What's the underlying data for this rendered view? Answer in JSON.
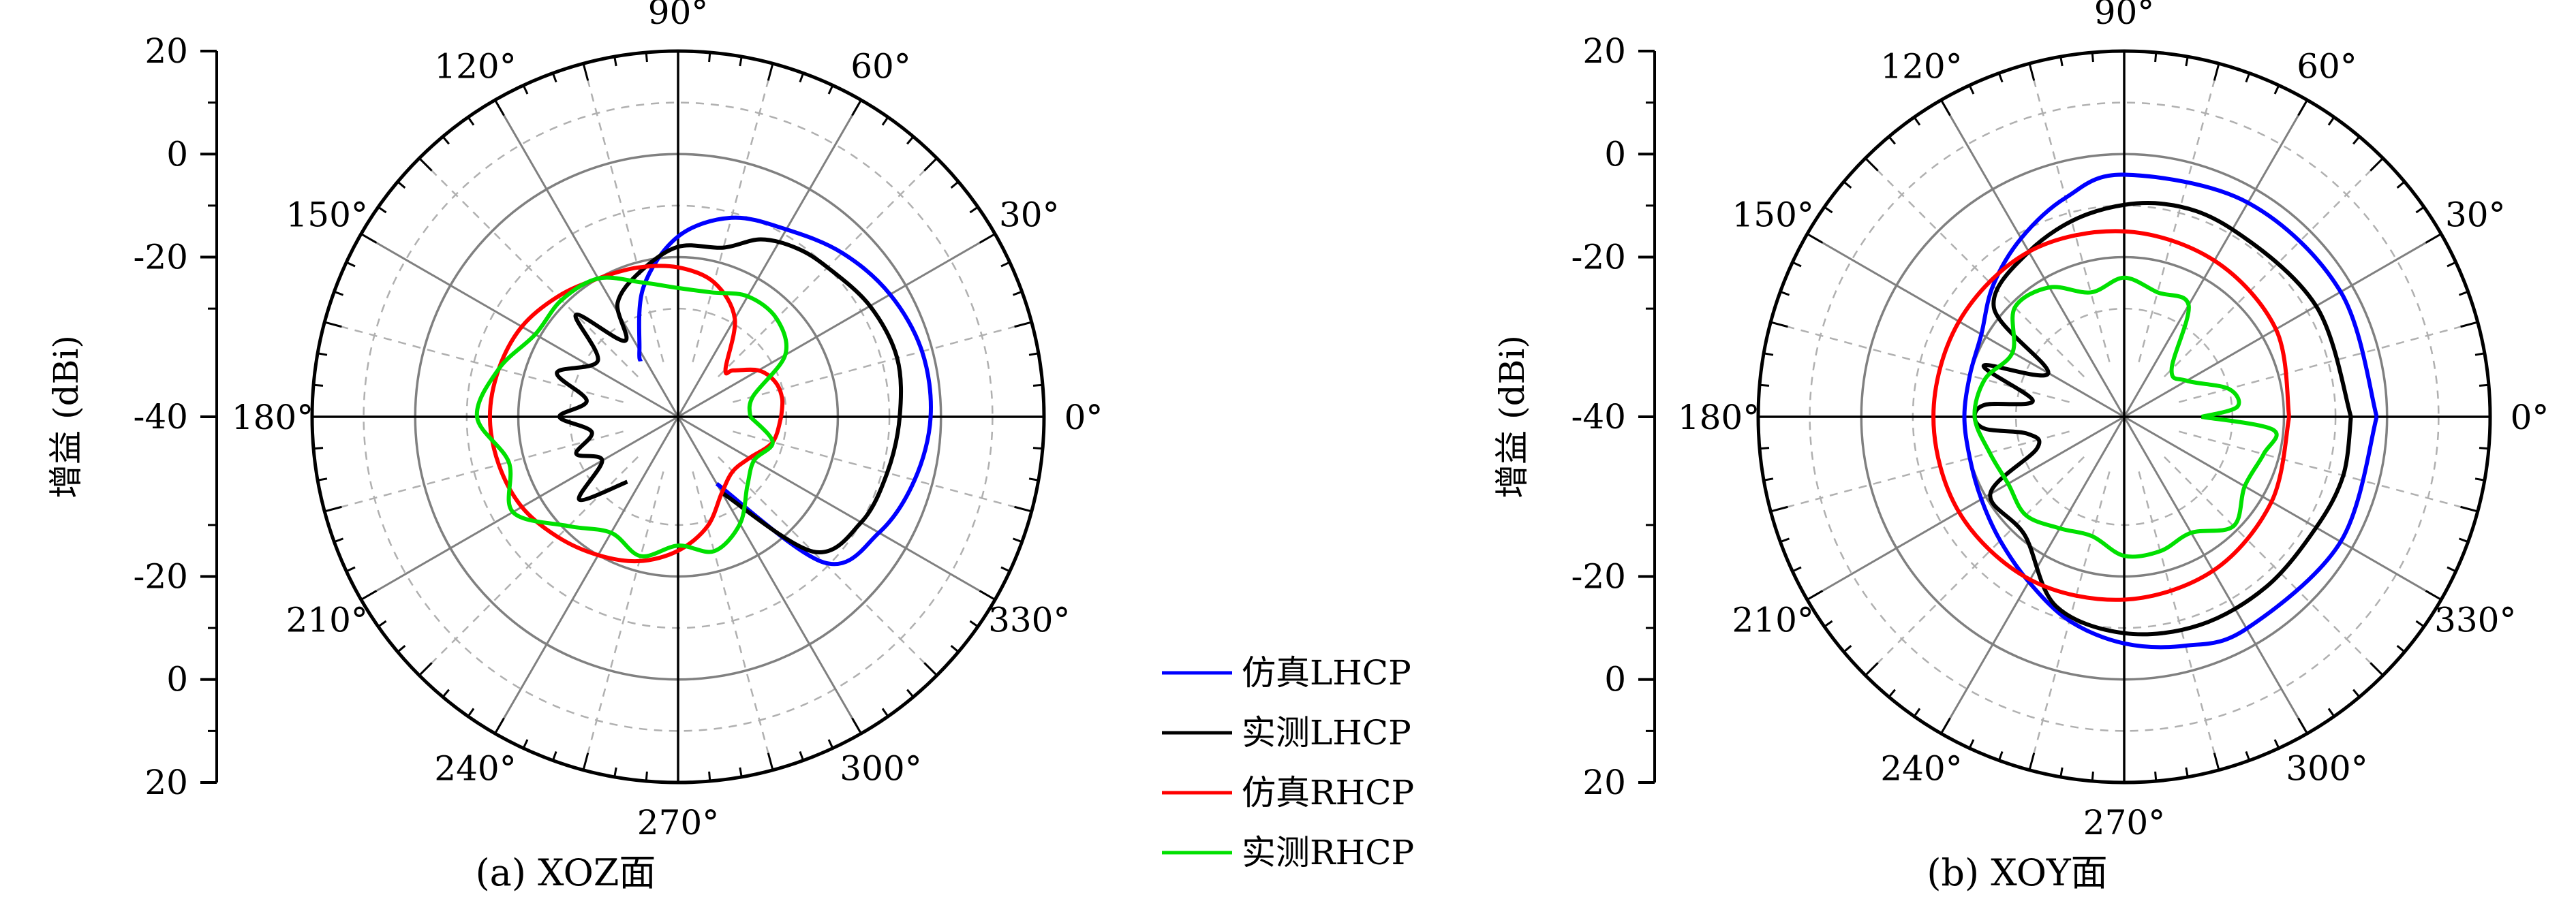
{
  "chart_data": [
    {
      "type": "polar",
      "caption": "(a) XOZ面",
      "ylabel": "增益 (dBi)",
      "radial_ticks": [
        "20",
        "0",
        "-20",
        "-40",
        "-20",
        "0",
        "20"
      ],
      "radial_range_dBi": [
        -40,
        20
      ],
      "angle_labels": [
        "0°",
        "30°",
        "60°",
        "90°",
        "120°",
        "150°",
        "180°",
        "210°",
        "240°",
        "270°",
        "300°",
        "330°"
      ],
      "angle_step_deg": 30,
      "series": [
        {
          "name": "仿真LHCP",
          "color": "#0000ff",
          "theta_deg": [
            -60,
            -45,
            -30,
            -15,
            0,
            15,
            30,
            45,
            60,
            75,
            90,
            105,
            120,
            124
          ],
          "gain_dBi": [
            -36,
            -11,
            -6,
            -3.5,
            -2,
            -2,
            -3.5,
            -6,
            -9,
            -11,
            -16,
            -25,
            -36,
            -38
          ]
        },
        {
          "name": "实测LHCP",
          "color": "#000000",
          "theta_deg": [
            -60,
            -45,
            -30,
            -15,
            0,
            15,
            30,
            45,
            55,
            65,
            75,
            90,
            105,
            118,
            125,
            135,
            145,
            160,
            170,
            180,
            190,
            200,
            210,
            220,
            232
          ],
          "gain_dBi": [
            -34,
            -14,
            -10,
            -9,
            -8,
            -7,
            -8,
            -10,
            -11,
            -13,
            -17,
            -18,
            -22,
            -26,
            -33,
            -23,
            -32,
            -26,
            -33,
            -28,
            -34,
            -30,
            -34,
            -26,
            -35
          ]
        },
        {
          "name": "仿真RHCP",
          "color": "#ff0000",
          "theta_deg": [
            0,
            10,
            20,
            30,
            40,
            45,
            60,
            75,
            90,
            105,
            120,
            135,
            150,
            165,
            180,
            195,
            210,
            225,
            240,
            255,
            270,
            285,
            300,
            315,
            330,
            345,
            360
          ],
          "gain_dBi": [
            -31,
            -30.5,
            -31,
            -33,
            -37,
            -38,
            -29,
            -24,
            -22,
            -21,
            -20,
            -18,
            -16,
            -15,
            -14.5,
            -15,
            -16,
            -18,
            -20,
            -22,
            -25,
            -29,
            -34,
            -36,
            -35,
            -32,
            -31
          ]
        },
        {
          "name": "实测RHCP",
          "color": "#00e000",
          "theta_deg": [
            0,
            15,
            30,
            45,
            60,
            75,
            90,
            105,
            120,
            135,
            150,
            165,
            180,
            195,
            210,
            225,
            240,
            255,
            270,
            285,
            300,
            315,
            330,
            345,
            360
          ],
          "gain_dBi": [
            -37,
            -36,
            -27,
            -24,
            -24,
            -26,
            -26,
            -24,
            -20,
            -19,
            -19,
            -15,
            -12,
            -17,
            -14,
            -21,
            -25,
            -23,
            -26,
            -24,
            -27,
            -32,
            -34,
            -32,
            -37
          ]
        }
      ]
    },
    {
      "type": "polar",
      "caption": "(b) XOY面",
      "ylabel": "增益 (dBi)",
      "radial_ticks": [
        "20",
        "0",
        "-20",
        "-40",
        "-20",
        "0",
        "20"
      ],
      "radial_range_dBi": [
        -40,
        20
      ],
      "angle_labels": [
        "0°",
        "30°",
        "60°",
        "90°",
        "120°",
        "150°",
        "180°",
        "210°",
        "240°",
        "270°",
        "300°",
        "330°"
      ],
      "angle_step_deg": 30,
      "series": [
        {
          "name": "仿真LHCP",
          "color": "#0000ff",
          "theta_deg": [
            0,
            30,
            60,
            90,
            105,
            120,
            135,
            150,
            165,
            180,
            195,
            210,
            225,
            240,
            255,
            270,
            285,
            300,
            330,
            360
          ],
          "gain_dBi": [
            -2,
            -2.5,
            -3,
            -4,
            -7,
            -11,
            -15,
            -19,
            -20,
            -20,
            -20,
            -19,
            -17,
            -14,
            -10,
            -7,
            -5,
            -3.5,
            -2.5,
            -2
          ]
        },
        {
          "name": "实测LHCP",
          "color": "#000000",
          "theta_deg": [
            0,
            30,
            60,
            80,
            100,
            120,
            140,
            150,
            160,
            170,
            175,
            180,
            185,
            190,
            200,
            210,
            230,
            250,
            270,
            290,
            310,
            330,
            345,
            360
          ],
          "gain_dBi": [
            -7,
            -8,
            -9,
            -9,
            -11,
            -14,
            -18,
            -34,
            -22,
            -33,
            -24,
            -22,
            -24,
            -32,
            -33,
            -21,
            -21,
            -12,
            -9,
            -8,
            -8,
            -8,
            -7,
            -7
          ]
        },
        {
          "name": "仿真RHCP",
          "color": "#ff0000",
          "theta_deg": [
            0,
            30,
            60,
            90,
            120,
            150,
            180,
            210,
            240,
            270,
            300,
            330,
            360
          ],
          "gain_dBi": [
            -19,
            -17,
            -16,
            -15,
            -14,
            -14,
            -14,
            -14,
            -14.5,
            -15.5,
            -16.5,
            -18,
            -19
          ]
        },
        {
          "name": "实测RHCP",
          "color": "#00e000",
          "theta_deg": [
            0,
            5,
            15,
            30,
            45,
            60,
            75,
            90,
            105,
            120,
            135,
            150,
            165,
            180,
            195,
            210,
            225,
            240,
            255,
            270,
            285,
            300,
            315,
            330,
            345,
            355,
            360
          ],
          "gain_dBi": [
            -36,
            -29,
            -30,
            -37,
            -38,
            -26,
            -26,
            -24,
            -26,
            -22,
            -21,
            -26,
            -23,
            -22,
            -24,
            -25,
            -24,
            -26,
            -27,
            -24,
            -24,
            -25,
            -21,
            -24,
            -23,
            -22,
            -36
          ]
        }
      ]
    }
  ],
  "legend": [
    {
      "label": "仿真LHCP",
      "color": "#0000ff"
    },
    {
      "label": "实测LHCP",
      "color": "#000000"
    },
    {
      "label": "仿真RHCP",
      "color": "#ff0000"
    },
    {
      "label": "实测RHCP",
      "color": "#00e000"
    }
  ]
}
